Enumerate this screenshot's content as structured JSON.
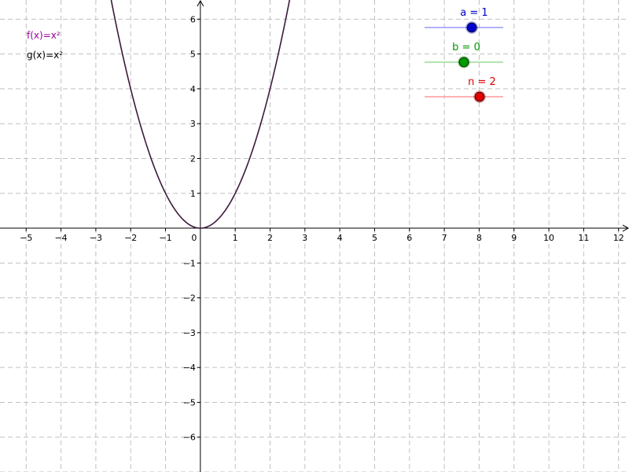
{
  "graph": {
    "x_axis": {
      "min": -5.75,
      "max": 12.3,
      "ticks": [
        -5,
        -4,
        -3,
        -2,
        -1,
        0,
        1,
        2,
        3,
        4,
        5,
        6,
        7,
        8,
        9,
        10,
        11,
        12
      ]
    },
    "y_axis": {
      "min": -7.0,
      "max": 6.55,
      "ticks": [
        6,
        5,
        4,
        3,
        2,
        1,
        -1,
        -2,
        -3,
        -4,
        -5,
        -6
      ]
    },
    "origin_label": "0",
    "grid": true,
    "colors": {
      "grid": "#c0c0c0",
      "axis": "#000000",
      "curve": "#3c1a3c"
    }
  },
  "algebra": {
    "f_label": "f(x)=x²",
    "g_label": "g(x)=x²",
    "f_color": "#990099",
    "g_color": "#000000"
  },
  "sliders": [
    {
      "name": "a",
      "label": "a = 1",
      "value": 1,
      "min": -5,
      "max": 5,
      "color": "#0000cc",
      "track_color": "#9999ff",
      "icon": "slider-knob-icon"
    },
    {
      "name": "b",
      "label": "b = 0",
      "value": 0,
      "min": -5,
      "max": 5,
      "color": "#009900",
      "track_color": "#99dd99",
      "icon": "slider-knob-icon"
    },
    {
      "name": "n",
      "label": "n = 2",
      "value": 2,
      "min": -5,
      "max": 5,
      "color": "#dd0000",
      "track_color": "#ff9999",
      "icon": "slider-knob-icon"
    }
  ]
}
